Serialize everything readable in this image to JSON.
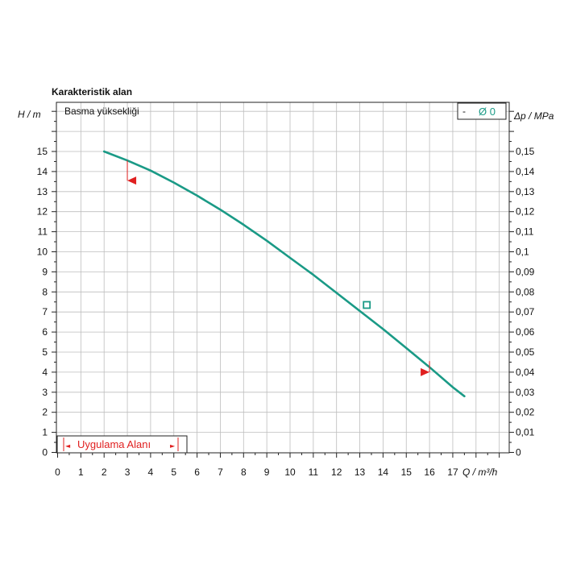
{
  "chart_data": {
    "type": "line",
    "title": "Karakteristik alan",
    "subtitle": "Basma yüksekliği",
    "ylabel_left": "H / m",
    "ylabel_right": "Δp / MPa",
    "xlabel": "Q / m³/h",
    "legend_dash": "-",
    "legend_label": "Ø 0",
    "application_range_label": "Uygulama Alanı",
    "arrow_left": "◄",
    "arrow_right": "►",
    "xlim": [
      0,
      19
    ],
    "ylim": [
      0,
      17
    ],
    "y2lim": [
      0,
      0.17
    ],
    "x_ticks": [
      "0",
      "1",
      "2",
      "3",
      "4",
      "5",
      "6",
      "7",
      "8",
      "9",
      "10",
      "11",
      "12",
      "13",
      "14",
      "15",
      "16",
      "17"
    ],
    "y_ticks": [
      "0",
      "1",
      "2",
      "3",
      "4",
      "5",
      "6",
      "7",
      "8",
      "9",
      "10",
      "11",
      "12",
      "13",
      "14",
      "15"
    ],
    "y2_ticks": [
      "0",
      "0,01",
      "0,02",
      "0,03",
      "0,04",
      "0,05",
      "0,06",
      "0,07",
      "0,08",
      "0,09",
      "0,1",
      "0,11",
      "0,12",
      "0,13",
      "0,14",
      "0,15"
    ],
    "grid": true,
    "series": [
      {
        "name": "Ø 0",
        "color": "#1a9a86",
        "x": [
          2,
          3,
          4,
          5,
          6,
          7,
          8,
          9,
          10,
          11,
          12,
          13,
          14,
          15,
          16,
          17,
          17.5
        ],
        "y": [
          15.0,
          14.55,
          14.05,
          13.45,
          12.8,
          12.1,
          11.35,
          10.55,
          9.7,
          8.85,
          7.95,
          7.05,
          6.15,
          5.2,
          4.25,
          3.25,
          2.8
        ]
      }
    ],
    "operating_point": {
      "x": 13.3,
      "y": 7.35
    },
    "limit_markers": [
      {
        "x": 3.0,
        "y_from": 14.55,
        "y_to": 13.55,
        "color": "#e02020"
      },
      {
        "x": 16.0,
        "y_from": 4.55,
        "y_to": 4.0,
        "color": "#e02020"
      }
    ]
  }
}
